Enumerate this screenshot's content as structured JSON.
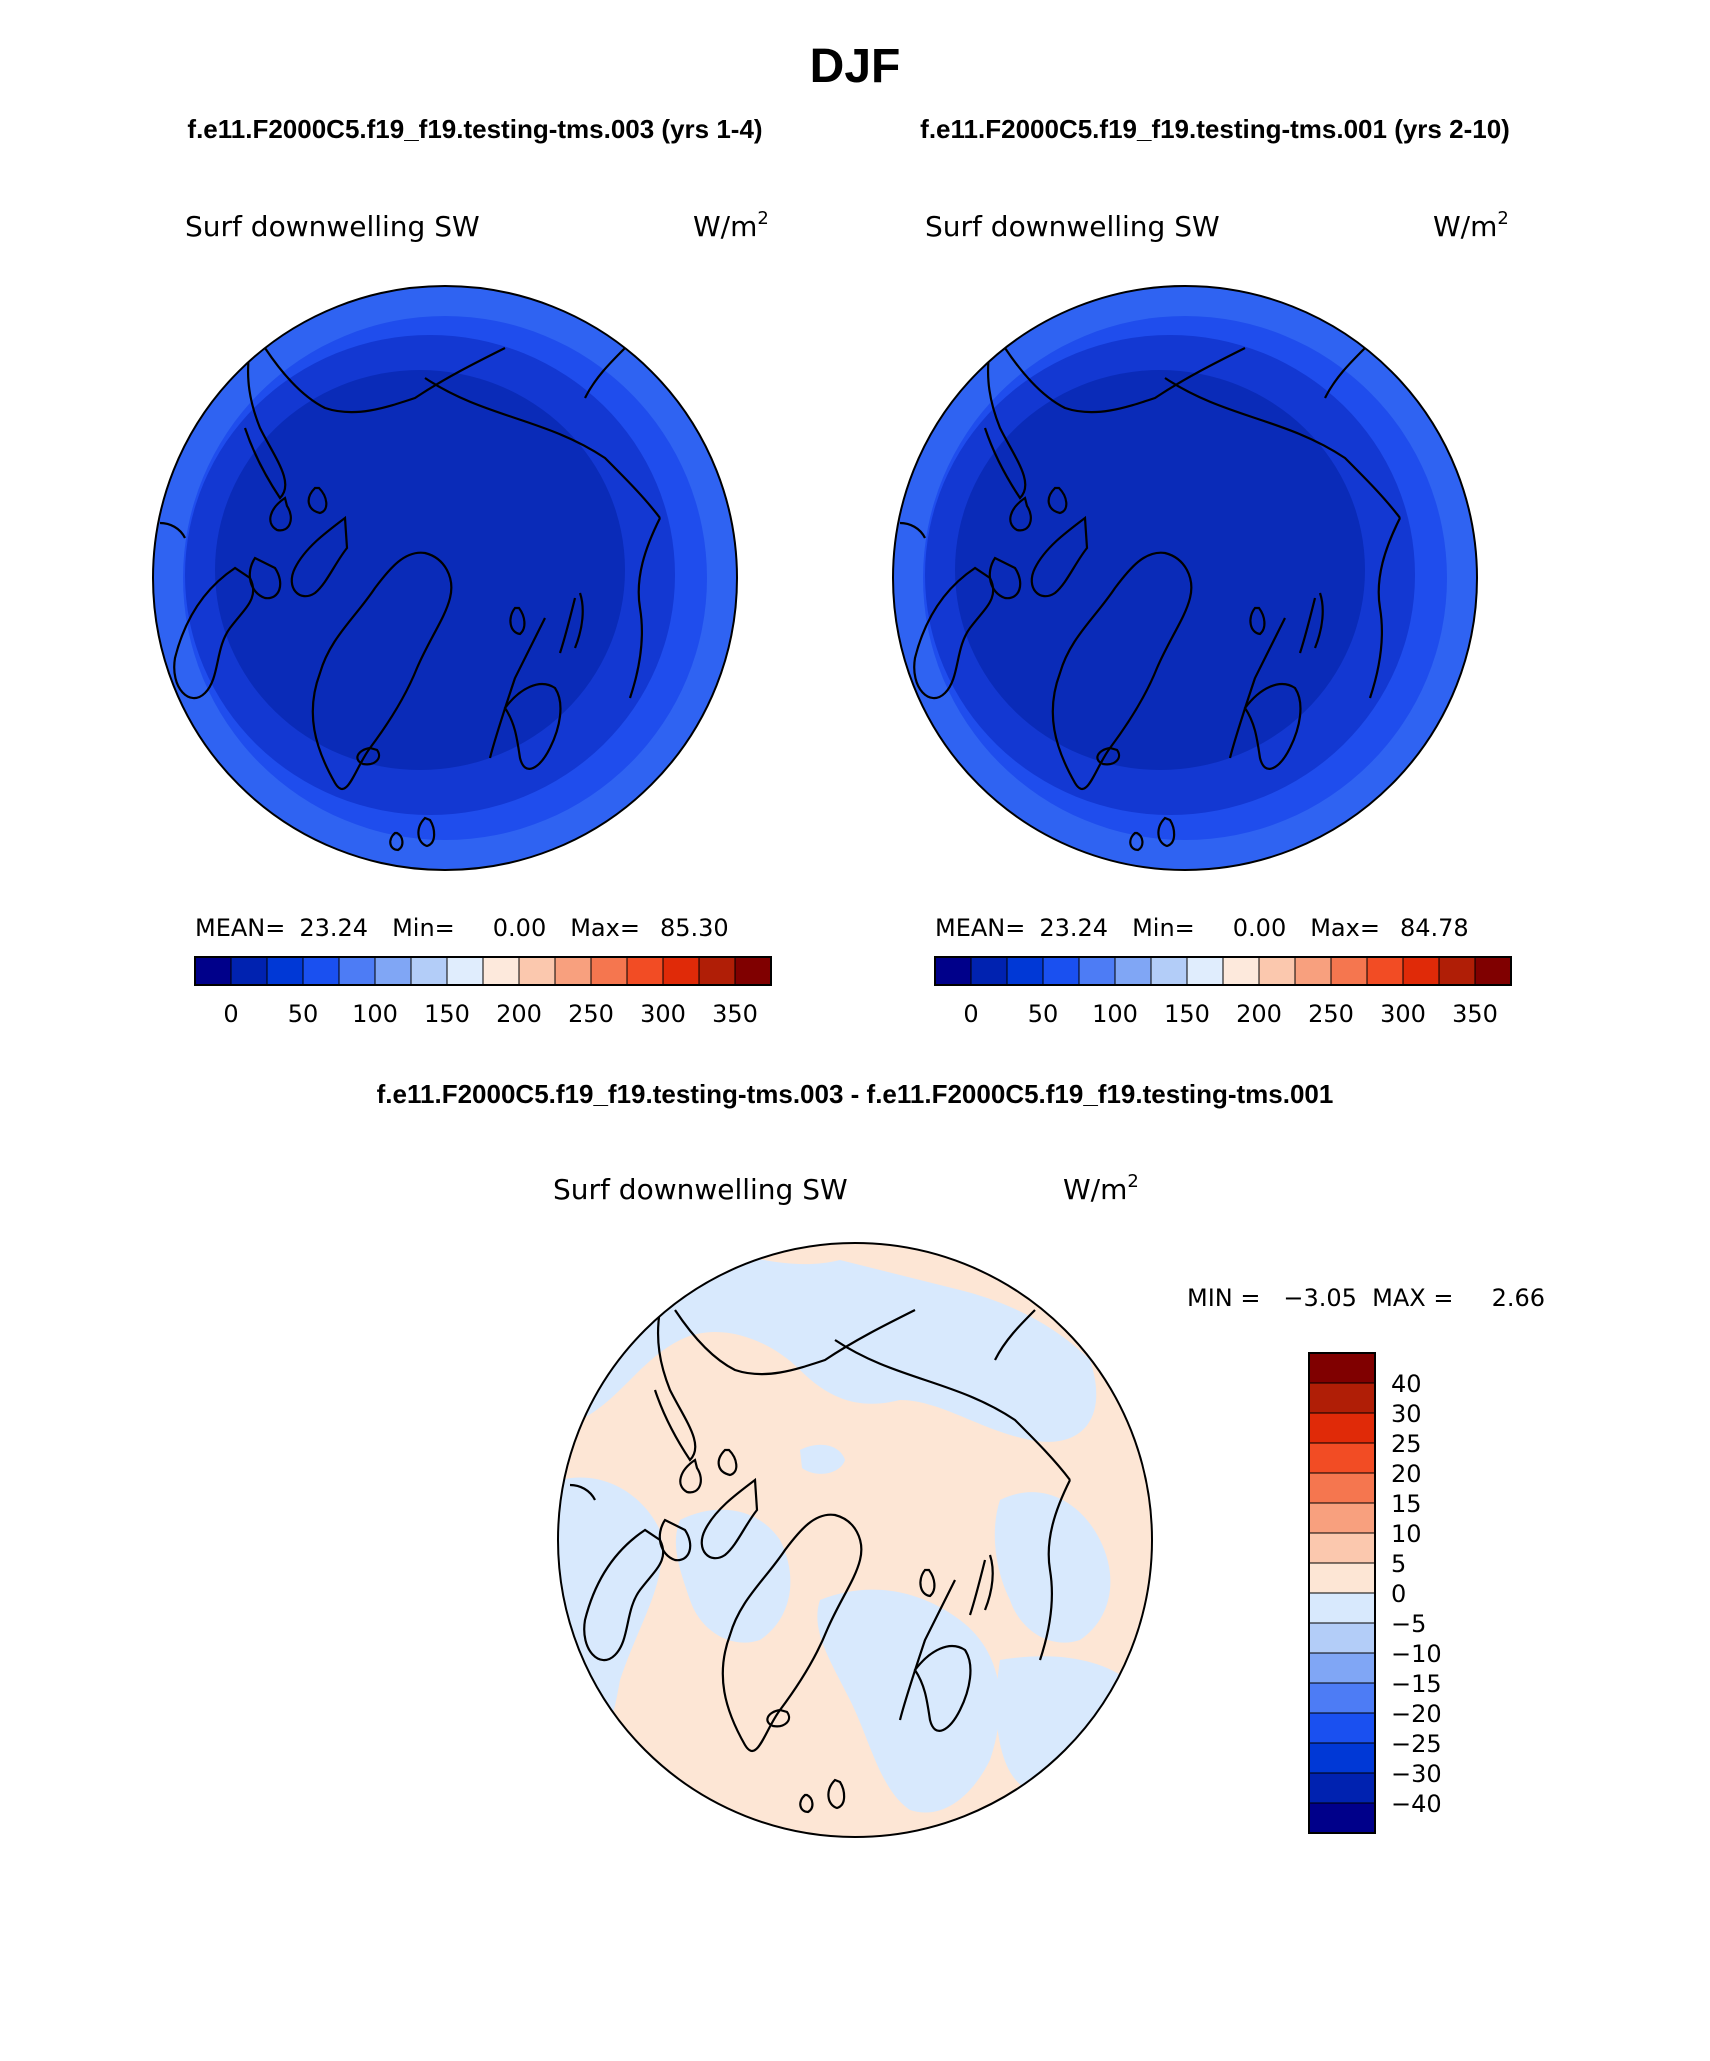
{
  "page": {
    "season": "DJF",
    "case_titles": [
      "f.e11.F2000C5.f19_f19.testing-tms.003 (yrs 1-4)",
      "f.e11.F2000C5.f19_f19.testing-tms.001 (yrs 2-10)"
    ],
    "diff_title": "f.e11.F2000C5.f19_f19.testing-tms.003 - f.e11.F2000C5.f19_f19.testing-tms.001"
  },
  "panels": [
    {
      "variable": "Surf downwelling SW",
      "units_base": "W/m",
      "units_sup": "2",
      "stats": {
        "mean_label": "MEAN=",
        "mean_value": "23.24",
        "min_label": "Min=",
        "min_value": "0.00",
        "max_label": "Max=",
        "max_value": "85.30"
      }
    },
    {
      "variable": "Surf downwelling SW",
      "units_base": "W/m",
      "units_sup": "2",
      "stats": {
        "mean_label": "MEAN=",
        "mean_value": "23.24",
        "min_label": "Min=",
        "min_value": "0.00",
        "max_label": "Max=",
        "max_value": "84.78"
      }
    }
  ],
  "diff_panel": {
    "variable": "Surf downwelling SW",
    "units_base": "W/m",
    "units_sup": "2",
    "stats_text": "MIN =   −3.05  MAX =     2.66"
  },
  "colorbar_abs": {
    "colors": [
      "#00008a",
      "#0022b0",
      "#0038d6",
      "#1a50f0",
      "#4d7cf5",
      "#80a6f5",
      "#b3cdf8",
      "#e0edfd",
      "#fde9dc",
      "#fbc8ae",
      "#f8a07e",
      "#f5764f",
      "#f24c24",
      "#e02a08",
      "#b01e06",
      "#800000"
    ],
    "labels": [
      "0",
      "50",
      "100",
      "150",
      "200",
      "250",
      "300",
      "350"
    ]
  },
  "colorbar_diff": {
    "colors": [
      "#00008a",
      "#0022b0",
      "#0038d6",
      "#1a50f0",
      "#4d7cf5",
      "#80a6f5",
      "#b3cdf8",
      "#d8e9fd",
      "#fde6d5",
      "#fbc8ae",
      "#f8a07e",
      "#f5764f",
      "#f24c24",
      "#e02a08",
      "#b01e06",
      "#800000"
    ],
    "labels": [
      "40",
      "30",
      "25",
      "20",
      "15",
      "10",
      "5",
      "0",
      "−5",
      "−10",
      "−15",
      "−20",
      "−25",
      "−30",
      "−40"
    ]
  },
  "map_colors": {
    "deep": "#0a2bb8",
    "mid": "#1338d2",
    "edge": "#1f4ded",
    "rim": "#2f63f2",
    "diff_pos": "#fde6d5",
    "diff_neg": "#d8e9fd"
  }
}
